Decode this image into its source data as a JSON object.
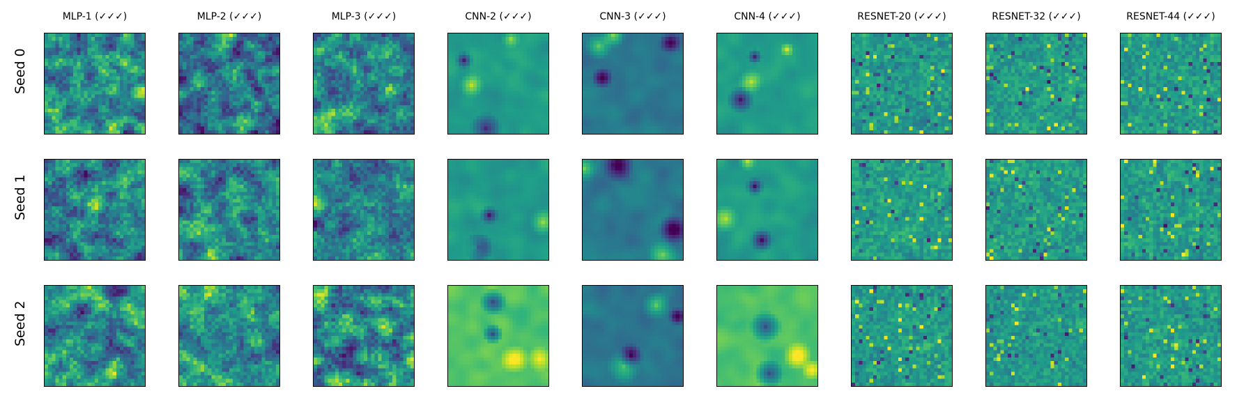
{
  "chart_data": {
    "type": "heatmap",
    "columns": [
      "MLP-1 (✓✓✓)",
      "MLP-2 (✓✓✓)",
      "MLP-3 (✓✓✓)",
      "CNN-2 (✓✓✓)",
      "CNN-3 (✓✓✓)",
      "CNN-4 (✓✓✓)",
      "RESNET-20 (✓✓✓)",
      "RESNET-32 (✓✓✓)",
      "RESNET-44 (✓✓✓)"
    ],
    "rows": [
      "Seed 0",
      "Seed 1",
      "Seed 2"
    ],
    "colormap": "viridis",
    "grid_resolution": 28,
    "axis_ticks": false
  }
}
